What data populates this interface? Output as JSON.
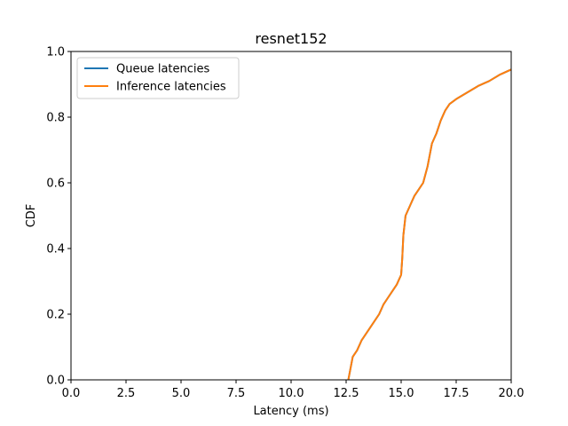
{
  "chart_data": {
    "type": "line",
    "title": "resnet152",
    "xlabel": "Latency (ms)",
    "ylabel": "CDF",
    "xlim": [
      0,
      20
    ],
    "ylim": [
      0,
      1
    ],
    "x_ticks": [
      "0.0",
      "2.5",
      "5.0",
      "7.5",
      "10.0",
      "12.5",
      "15.0",
      "17.5",
      "20.0"
    ],
    "y_ticks": [
      "0.0",
      "0.2",
      "0.4",
      "0.6",
      "0.8",
      "1.0"
    ],
    "grid": false,
    "legend_position": "top-left",
    "series": [
      {
        "name": "Queue latencies",
        "color": "#1f77b4",
        "x": [
          12.6,
          12.8,
          13.0,
          13.2,
          13.6,
          14.0,
          14.2,
          14.4,
          14.6,
          14.8,
          15.0,
          15.05,
          15.1,
          15.2,
          15.4,
          15.6,
          15.8,
          16.0,
          16.2,
          16.4,
          16.6,
          16.8,
          17.0,
          17.2,
          17.5,
          18.0,
          18.5,
          19.0,
          19.5,
          20.0
        ],
        "y": [
          0.0,
          0.07,
          0.09,
          0.12,
          0.16,
          0.2,
          0.23,
          0.25,
          0.27,
          0.29,
          0.32,
          0.37,
          0.44,
          0.5,
          0.53,
          0.56,
          0.58,
          0.6,
          0.65,
          0.72,
          0.75,
          0.79,
          0.82,
          0.84,
          0.855,
          0.875,
          0.895,
          0.91,
          0.93,
          0.945
        ]
      },
      {
        "name": "Inference latencies",
        "color": "#ff7f0e",
        "x": [
          12.6,
          12.8,
          13.0,
          13.2,
          13.6,
          14.0,
          14.2,
          14.4,
          14.6,
          14.8,
          15.0,
          15.05,
          15.1,
          15.2,
          15.4,
          15.6,
          15.8,
          16.0,
          16.2,
          16.4,
          16.6,
          16.8,
          17.0,
          17.2,
          17.5,
          18.0,
          18.5,
          19.0,
          19.5,
          20.0
        ],
        "y": [
          0.0,
          0.07,
          0.09,
          0.12,
          0.16,
          0.2,
          0.23,
          0.25,
          0.27,
          0.29,
          0.32,
          0.37,
          0.44,
          0.5,
          0.53,
          0.56,
          0.58,
          0.6,
          0.65,
          0.72,
          0.75,
          0.79,
          0.82,
          0.84,
          0.855,
          0.875,
          0.895,
          0.91,
          0.93,
          0.945
        ]
      }
    ]
  }
}
